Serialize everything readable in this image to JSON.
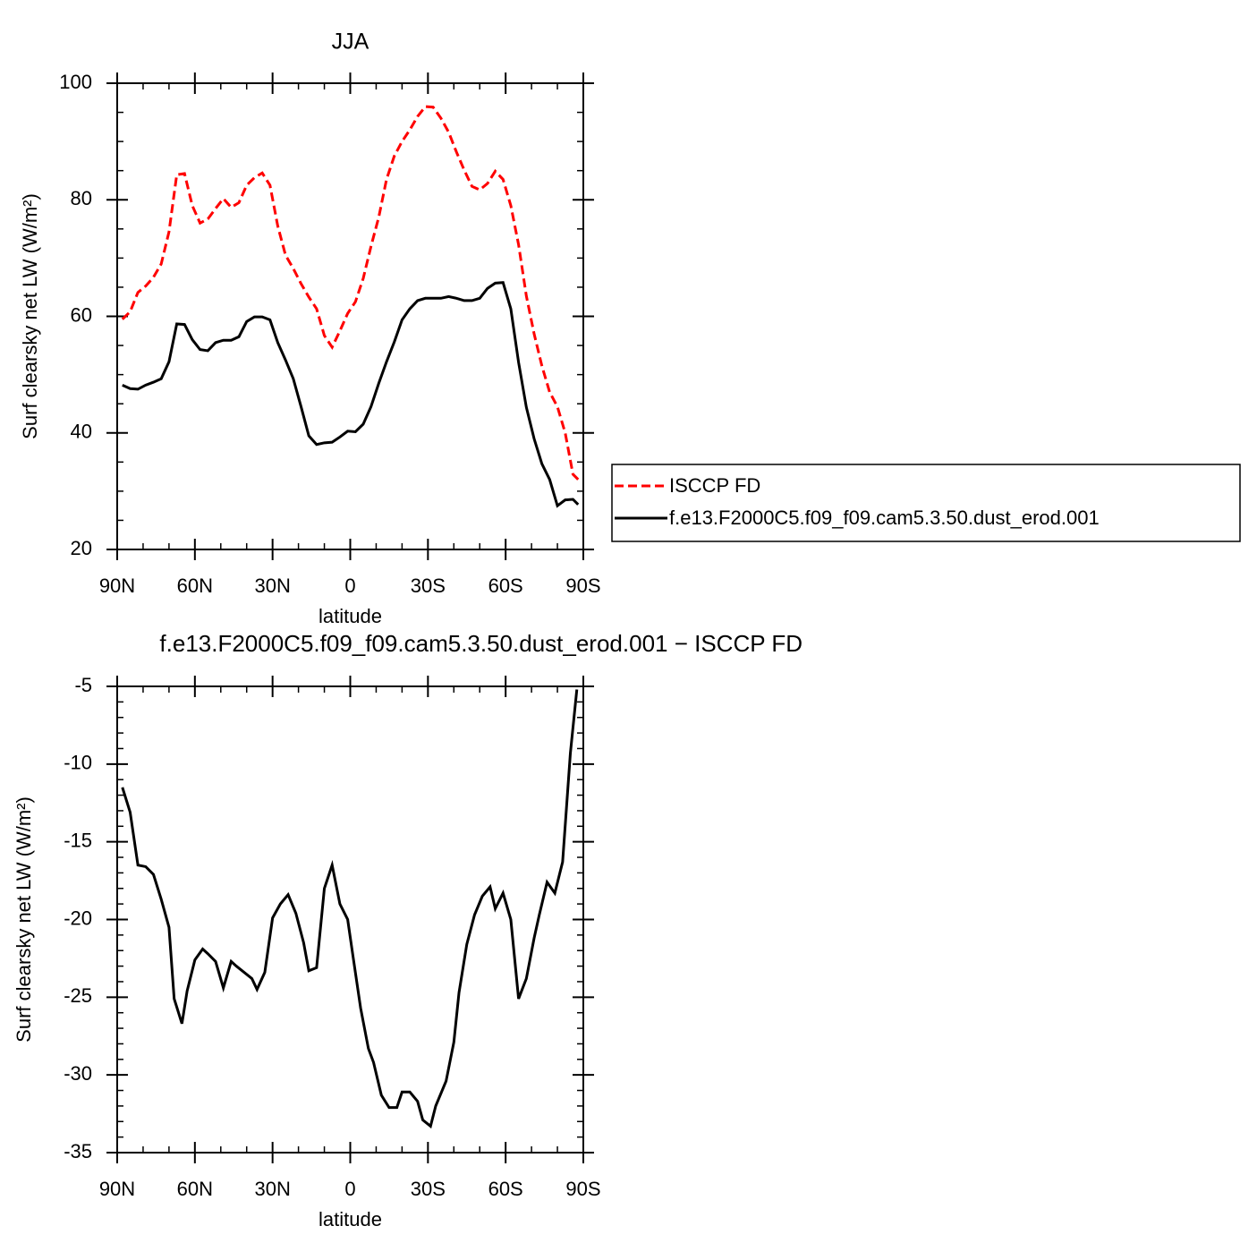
{
  "chart_data": [
    {
      "type": "line",
      "title": "JJA",
      "xlabel": "latitude",
      "ylabel": "Surf clearsky net LW (W/m²)",
      "x": [
        88,
        85,
        82,
        79,
        76,
        73,
        70,
        67,
        64,
        61,
        58,
        55,
        52,
        49,
        46,
        43,
        40,
        37,
        34,
        31,
        28,
        25,
        22,
        19,
        16,
        13,
        10,
        7,
        4,
        1,
        -2,
        -5,
        -8,
        -11,
        -14,
        -17,
        -20,
        -23,
        -26,
        -29,
        -32,
        -35,
        -38,
        -41,
        -44,
        -47,
        -50,
        -53,
        -56,
        -59,
        -62,
        -65,
        -68,
        -71,
        -74,
        -77,
        -80,
        -83,
        -86,
        -88
      ],
      "series": [
        {
          "name": "ISCCP FD",
          "color": "#ff0000",
          "linestyle": "dashed",
          "values": [
            59.5,
            60.8,
            64.1,
            65.2,
            66.7,
            69,
            74.5,
            84.3,
            84.5,
            79,
            76,
            76.7,
            78.5,
            80.2,
            78.7,
            79.5,
            82.5,
            83.8,
            84.6,
            82.5,
            75.5,
            70.5,
            68.2,
            65.6,
            63.3,
            61.3,
            56.7,
            54.7,
            57.5,
            60.5,
            62.5,
            66.5,
            72,
            77,
            83.5,
            87.5,
            90,
            92,
            94.3,
            96,
            95.9,
            94,
            91.6,
            88.2,
            85.1,
            82.3,
            81.7,
            82.8,
            84.9,
            83.5,
            79,
            72.3,
            63.5,
            57,
            51.5,
            47,
            44.5,
            40,
            32.9,
            32
          ]
        },
        {
          "name": "f.e13.F2000C5.f09_f09.cam5.3.50.dust_erod.001",
          "color": "#000000",
          "linestyle": "solid",
          "values": [
            48.2,
            47.6,
            47.5,
            48.2,
            48.7,
            49.3,
            52.2,
            58.7,
            58.6,
            56,
            54.3,
            54.1,
            55.5,
            55.9,
            55.9,
            56.5,
            59.1,
            59.9,
            59.9,
            59.4,
            55.5,
            52.5,
            49.3,
            44.5,
            39.5,
            38,
            38.3,
            38.4,
            39.3,
            40.3,
            40.2,
            41.5,
            44.5,
            48.5,
            52.2,
            55.6,
            59.4,
            61.3,
            62.7,
            63.1,
            63.1,
            63.1,
            63.4,
            63.1,
            62.7,
            62.7,
            63.1,
            64.8,
            65.7,
            65.8,
            61.3,
            52.1,
            44.4,
            39,
            34.7,
            32,
            27.5,
            28.5,
            28.6,
            27.7
          ]
        }
      ],
      "xlim": [
        90,
        -90
      ],
      "xticks": [
        {
          "value": 90,
          "label": "90N"
        },
        {
          "value": 60,
          "label": "60N"
        },
        {
          "value": 30,
          "label": "30N"
        },
        0,
        {
          "value": -30,
          "label": "30S"
        },
        {
          "value": -60,
          "label": "60S"
        },
        {
          "value": -90,
          "label": "90S"
        }
      ],
      "xminorticks": [
        80,
        70,
        50,
        40,
        20,
        10,
        -10,
        -20,
        -40,
        -50,
        -70,
        -80
      ],
      "ylim": [
        20,
        100
      ],
      "yticks": [
        20,
        40,
        60,
        80,
        100
      ],
      "yminorticks": [
        25,
        30,
        35,
        45,
        50,
        55,
        65,
        70,
        75,
        85,
        90,
        95
      ],
      "legend": "right"
    },
    {
      "type": "line",
      "title": "f.e13.F2000C5.f09_f09.cam5.3.50.dust_erod.001 − ISCCP FD",
      "xlabel": "latitude",
      "ylabel": "Surf clearsky net LW (W/m²)",
      "x": [
        88,
        85,
        82,
        79,
        76,
        73,
        70,
        68,
        65,
        63,
        60,
        57,
        55,
        52,
        49,
        46,
        44,
        38,
        36,
        33,
        30,
        27,
        24,
        21,
        18,
        16,
        13,
        10,
        7,
        4,
        1,
        -1,
        -4,
        -7,
        -9,
        -12,
        -15,
        -18,
        -20,
        -23,
        -26,
        -28,
        -31,
        -33,
        -37,
        -40,
        -42,
        -45,
        -48,
        -51,
        -54,
        -56,
        -59,
        -62,
        -65,
        -68,
        -71,
        -73,
        -76,
        -79,
        -82,
        -85,
        -87.5
      ],
      "series": [
        {
          "color": "#000000",
          "linestyle": "solid",
          "values": [
            -11.5,
            -13.1,
            -16.5,
            -16.6,
            -17.1,
            -18.7,
            -20.5,
            -25.1,
            -26.7,
            -24.6,
            -22.6,
            -21.9,
            -22.2,
            -22.7,
            -24.4,
            -22.7,
            -23,
            -23.8,
            -24.5,
            -23.4,
            -19.9,
            -19,
            -18.4,
            -19.6,
            -21.5,
            -23.3,
            -23.1,
            -18,
            -16.5,
            -19,
            -20,
            -22.3,
            -25.7,
            -28.3,
            -29.2,
            -31.3,
            -32.1,
            -32.1,
            -31.1,
            -31.1,
            -31.7,
            -32.9,
            -33.3,
            -32,
            -30.4,
            -27.9,
            -24.7,
            -21.6,
            -19.7,
            -18.5,
            -17.9,
            -19.3,
            -18.3,
            -20,
            -25.1,
            -23.8,
            -21.2,
            -19.7,
            -17.6,
            -18.3,
            -16.3,
            -9.3,
            -5.2
          ]
        }
      ],
      "xlim": [
        90,
        -90
      ],
      "xticks": [
        {
          "value": 90,
          "label": "90N"
        },
        {
          "value": 60,
          "label": "60N"
        },
        {
          "value": 30,
          "label": "30N"
        },
        0,
        {
          "value": -30,
          "label": "30S"
        },
        {
          "value": -60,
          "label": "60S"
        },
        {
          "value": -90,
          "label": "90S"
        }
      ],
      "xminorticks": [
        80,
        70,
        50,
        40,
        20,
        10,
        -10,
        -20,
        -40,
        -50,
        -70,
        -80
      ],
      "ylim": [
        -35,
        -5
      ],
      "yticks": [
        -35,
        -30,
        -25,
        -20,
        -15,
        -10,
        -5
      ],
      "yminorticks": [
        -34,
        -33,
        -32,
        -31,
        -29,
        -28,
        -27,
        -26,
        -24,
        -23,
        -22,
        -21,
        -19,
        -18,
        -17,
        -16,
        -14,
        -13,
        -12,
        -11,
        -9,
        -8,
        -7,
        -6
      ]
    }
  ]
}
